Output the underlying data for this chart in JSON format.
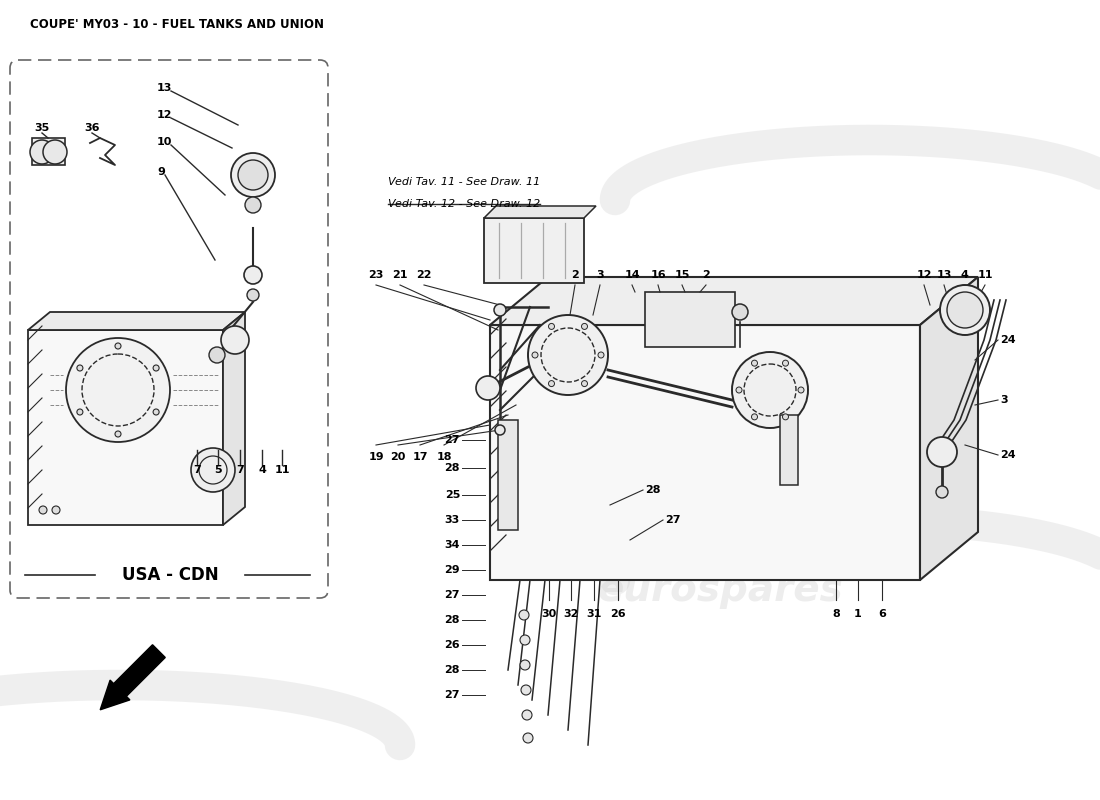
{
  "title": "COUPE' MY03 - 10 - FUEL TANKS AND UNION",
  "bg_color": "#ffffff",
  "watermark_text": "eurospares",
  "usa_cdn_label": "USA - CDN",
  "note_lines": [
    "Vedi Tav. 11 - See Draw. 11",
    "Vedi Tav. 12 - See Draw. 12"
  ],
  "line_color": "#2a2a2a",
  "label_color": "#000000"
}
